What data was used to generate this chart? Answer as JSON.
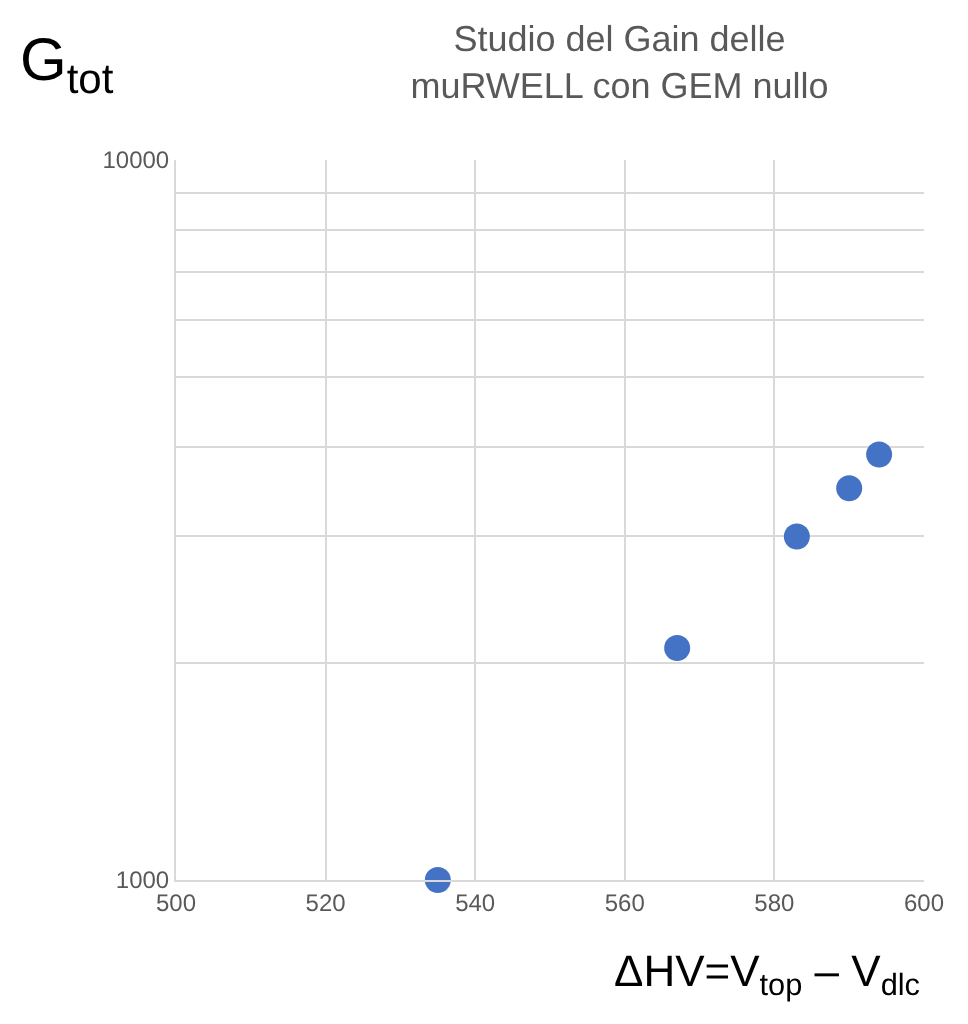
{
  "chart_data": {
    "type": "scatter",
    "title": "Studio del Gain delle\nmuRWELL con GEM nullo",
    "ylabel": "G$_{tot}$",
    "xlabel": "ΔHV=V$_{top}$ – V$_{dlc}$",
    "x": [
      535,
      567,
      583,
      590,
      594
    ],
    "values": [
      1000,
      2100,
      3000,
      3500,
      3900
    ],
    "color": "#4472c4",
    "marker": "circle",
    "log": "y",
    "grid": true,
    "xlim": [
      500,
      600
    ],
    "xticks": [
      500,
      520,
      540,
      560,
      580,
      600
    ],
    "ylim": [
      1000,
      10000
    ],
    "yticks": [
      1000,
      {
        "value": 2000,
        "label": null
      },
      {
        "value": 3000,
        "label": null
      },
      {
        "value": 4000,
        "label": null
      },
      {
        "value": 5000,
        "label": null
      },
      {
        "value": 6000,
        "label": null
      },
      {
        "value": 7000,
        "label": null
      },
      {
        "value": 8000,
        "label": null
      },
      {
        "value": 9000,
        "label": null
      },
      10000
    ]
  }
}
